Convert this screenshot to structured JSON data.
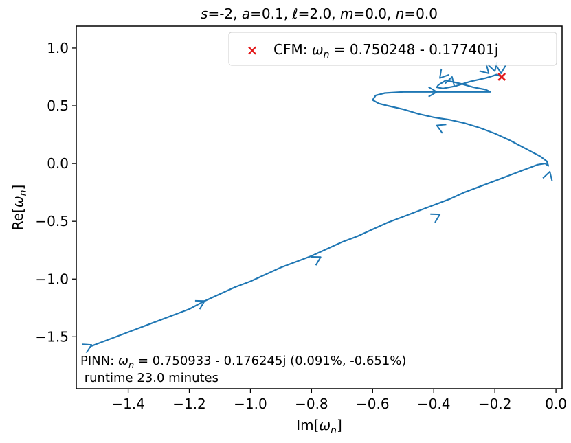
{
  "chart_data": {
    "type": "line",
    "title": {
      "parts": [
        {
          "text": "s",
          "italic": true
        },
        {
          "text": "=-2, ",
          "italic": false
        },
        {
          "text": "a",
          "italic": true
        },
        {
          "text": "=0.1, ",
          "italic": false
        },
        {
          "text": "ℓ",
          "italic": true
        },
        {
          "text": "=2.0, ",
          "italic": false
        },
        {
          "text": "m",
          "italic": true
        },
        {
          "text": "=0.0, ",
          "italic": false
        },
        {
          "text": "n",
          "italic": true
        },
        {
          "text": "=0.0",
          "italic": false
        }
      ]
    },
    "xlabel": {
      "prefix": "Im[",
      "sym": "ω",
      "sub": "n",
      "suffix": "]"
    },
    "ylabel": {
      "prefix": "Re[",
      "sym": "ω",
      "sub": "n",
      "suffix": "]"
    },
    "xlim": [
      -1.57,
      0.02
    ],
    "ylim": [
      -1.95,
      1.19
    ],
    "xticks": [
      -1.4,
      -1.2,
      -1.0,
      -0.8,
      -0.6,
      -0.4,
      -0.2,
      0.0
    ],
    "xtick_labels": [
      "−1.4",
      "−1.2",
      "−1.0",
      "−0.8",
      "−0.6",
      "−0.4",
      "−0.2",
      "0.0"
    ],
    "yticks": [
      1.0,
      0.5,
      0.0,
      -0.5,
      -1.0,
      -1.5
    ],
    "ytick_labels": [
      "1.0",
      "0.5",
      "0.0",
      "−0.5",
      "−1.0",
      "−1.5"
    ],
    "grid": false,
    "legend_position": "top-right",
    "line_color": "#1f77b4",
    "marker_color": "#e31a1c",
    "series": [
      {
        "kind": "trajectory",
        "x": [
          -1.52,
          -1.5,
          -1.45,
          -1.4,
          -1.35,
          -1.3,
          -1.25,
          -1.2,
          -1.15,
          -1.1,
          -1.05,
          -1.0,
          -0.95,
          -0.9,
          -0.85,
          -0.8,
          -0.75,
          -0.7,
          -0.65,
          -0.6,
          -0.55,
          -0.5,
          -0.45,
          -0.4,
          -0.35,
          -0.3,
          -0.25,
          -0.2,
          -0.15,
          -0.1,
          -0.06,
          -0.035,
          -0.025,
          -0.03,
          -0.05,
          -0.1,
          -0.15,
          -0.2,
          -0.25,
          -0.3,
          -0.35,
          -0.4,
          -0.45,
          -0.5,
          -0.55,
          -0.58,
          -0.6,
          -0.59,
          -0.56,
          -0.5,
          -0.45,
          -0.4,
          -0.35,
          -0.3,
          -0.25,
          -0.215,
          -0.23,
          -0.27,
          -0.31,
          -0.36,
          -0.385,
          -0.39,
          -0.37,
          -0.33,
          -0.28,
          -0.23,
          -0.205,
          -0.195,
          -0.185,
          -0.18,
          -0.178,
          -0.1775
        ],
        "y": [
          -1.58,
          -1.56,
          -1.51,
          -1.46,
          -1.41,
          -1.36,
          -1.31,
          -1.26,
          -1.19,
          -1.13,
          -1.07,
          -1.02,
          -0.96,
          -0.9,
          -0.85,
          -0.8,
          -0.74,
          -0.68,
          -0.63,
          -0.57,
          -0.51,
          -0.46,
          -0.41,
          -0.36,
          -0.31,
          -0.25,
          -0.2,
          -0.15,
          -0.1,
          -0.05,
          -0.01,
          0.0,
          -0.02,
          0.02,
          0.06,
          0.13,
          0.2,
          0.26,
          0.31,
          0.35,
          0.38,
          0.4,
          0.43,
          0.47,
          0.5,
          0.52,
          0.55,
          0.59,
          0.61,
          0.62,
          0.62,
          0.62,
          0.62,
          0.62,
          0.62,
          0.62,
          0.64,
          0.66,
          0.69,
          0.72,
          0.68,
          0.66,
          0.65,
          0.67,
          0.71,
          0.74,
          0.76,
          0.77,
          0.76,
          0.755,
          0.752,
          0.7502
        ]
      },
      {
        "kind": "arrow-heads",
        "points": [
          {
            "x": -1.52,
            "y": -1.57,
            "dx": 1.0,
            "dy": 0.5
          },
          {
            "x": -1.15,
            "y": -1.19,
            "dx": 1.0,
            "dy": 0.55
          },
          {
            "x": -0.77,
            "y": -0.81,
            "dx": 1.0,
            "dy": 0.55
          },
          {
            "x": -0.38,
            "y": -0.44,
            "dx": 1.0,
            "dy": 0.55
          },
          {
            "x": -0.02,
            "y": -0.07,
            "dx": 0.3,
            "dy": 1.0
          },
          {
            "x": -0.39,
            "y": 0.33,
            "dx": -1.0,
            "dy": 0.45
          },
          {
            "x": -0.39,
            "y": 0.62,
            "dx": 1.0,
            "dy": 0.0
          },
          {
            "x": -0.38,
            "y": 0.74,
            "dx": -0.5,
            "dy": -0.6
          },
          {
            "x": -0.34,
            "y": 0.75,
            "dx": 0.3,
            "dy": 1.0
          },
          {
            "x": -0.22,
            "y": 0.78,
            "dx": 0.5,
            "dy": -0.5
          },
          {
            "x": -0.2,
            "y": 0.8,
            "dx": 0.3,
            "dy": -1.0
          },
          {
            "x": -0.18,
            "y": 0.78,
            "dx": 0.0,
            "dy": -1.0
          }
        ]
      }
    ],
    "cfm_point": {
      "x": -0.177401,
      "y": 0.750248
    },
    "legend": {
      "marker": "×",
      "prefix": "CFM: ",
      "sym": "ω",
      "sub": "n",
      "suffix": " = 0.750248 - 0.177401j"
    },
    "annotation": {
      "line1_prefix": "PINN: ",
      "line1_sym": "ω",
      "line1_sub": "n",
      "line1_suffix": " = 0.750933 - 0.176245j (0.091%, -0.651%)",
      "line2": " runtime 23.0 minutes"
    }
  }
}
